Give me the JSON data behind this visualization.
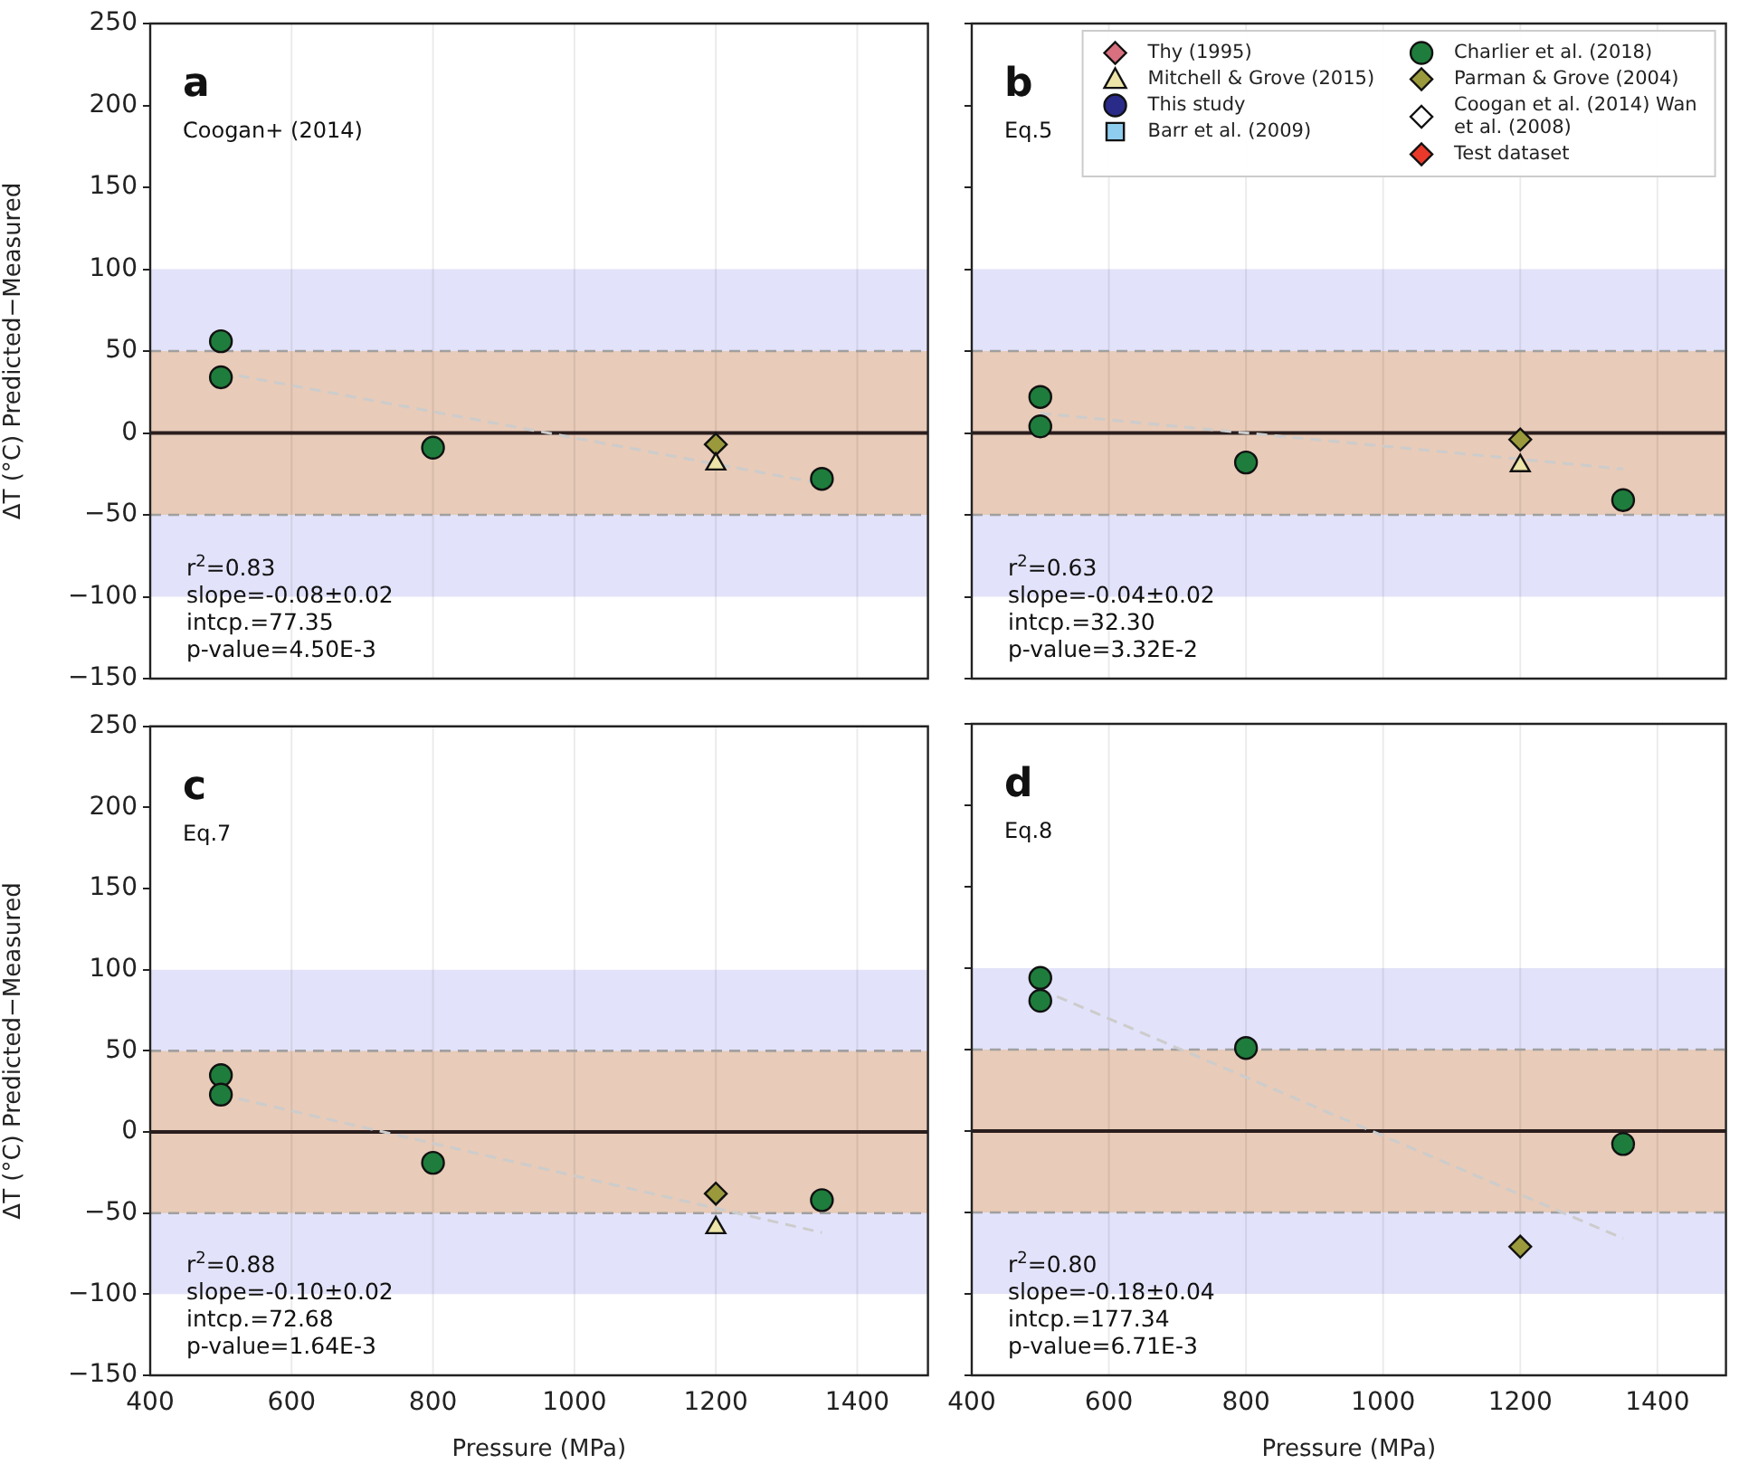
{
  "chart_data": [
    {
      "type": "scatter",
      "title": "a",
      "subtitle": "Coogan+ (2014)",
      "ylabel": "ΔT (°C) Predicted−Measured",
      "annotations": [
        "r$^{2}$=0.83",
        "slope=-0.08±0.02",
        "intcp.=77.35",
        "p-value=4.50E-3"
      ],
      "xlim": [
        400,
        1500
      ],
      "xticks": [
        400,
        600,
        800,
        1000,
        1200,
        1400
      ],
      "ylim": [
        -150,
        250
      ],
      "yticks": [
        -150,
        -100,
        -50,
        0,
        50,
        100,
        150,
        200,
        250
      ],
      "tick_labels": "y",
      "grid": "x",
      "bands": [
        {
          "axis": "y",
          "from": -100,
          "to": 100,
          "color": "#e2e2fa"
        },
        {
          "axis": "y",
          "from": -50,
          "to": 50,
          "color": "#e8cbb8"
        }
      ],
      "ref_lines": [
        {
          "axis": "y",
          "value": 50,
          "color": "#a0a0a0",
          "line_style": "dashed"
        },
        {
          "axis": "y",
          "value": -50,
          "color": "#a0a0a0",
          "line_style": "dashed"
        },
        {
          "axis": "y",
          "value": 0,
          "color": "#2a1e1e",
          "line_style": "solid"
        }
      ],
      "series": [
        {
          "type": "line",
          "color": "#cccccc",
          "line_style": "dashed",
          "marker": "none",
          "x": [
            500,
            1350
          ],
          "values": [
            37,
            -31
          ]
        },
        {
          "color": "#1e7d3c",
          "marker": "circle",
          "x": [
            500,
            500,
            800,
            1350
          ],
          "values": [
            56,
            34,
            -9,
            -28
          ]
        },
        {
          "color": "#ece4a8",
          "marker": "triangle",
          "x": [
            1200
          ],
          "values": [
            -19
          ]
        },
        {
          "color": "#9a9a3c",
          "marker": "diamond",
          "x": [
            1200
          ],
          "values": [
            -7
          ]
        }
      ]
    },
    {
      "type": "scatter",
      "title": "b",
      "subtitle": "Eq.5",
      "annotations": [
        "r$^{2}$=0.63",
        "slope=-0.04±0.02",
        "intcp.=32.30",
        "p-value=3.32E-2"
      ],
      "xlim": [
        400,
        1500
      ],
      "xticks": [
        400,
        600,
        800,
        1000,
        1200,
        1400
      ],
      "ylim": [
        -150,
        250
      ],
      "yticks": [
        -150,
        -100,
        -50,
        0,
        50,
        100,
        150,
        200,
        250
      ],
      "tick_labels": false,
      "grid": "x",
      "legend": "top right",
      "bands": [
        {
          "axis": "y",
          "from": -100,
          "to": 100,
          "color": "#e2e2fa"
        },
        {
          "axis": "y",
          "from": -50,
          "to": 50,
          "color": "#e8cbb8"
        }
      ],
      "ref_lines": [
        {
          "axis": "y",
          "value": 50,
          "color": "#a0a0a0",
          "line_style": "dashed"
        },
        {
          "axis": "y",
          "value": -50,
          "color": "#a0a0a0",
          "line_style": "dashed"
        },
        {
          "axis": "y",
          "value": 0,
          "color": "#2a1e1e",
          "line_style": "solid"
        }
      ],
      "series": [
        {
          "type": "line",
          "color": "#cccccc",
          "line_style": "dashed",
          "marker": "none",
          "x": [
            500,
            1350
          ],
          "values": [
            12,
            -22
          ]
        },
        {
          "name": "Thy (1995)",
          "color": "#d9707f",
          "marker": "diamond"
        },
        {
          "name": "Mitchell & Grove (2015)",
          "color": "#ece4a8",
          "marker": "triangle",
          "x": [
            1200
          ],
          "values": [
            -20
          ]
        },
        {
          "name": "This study",
          "color": "#2a2a88",
          "marker": "circle"
        },
        {
          "name": "Barr et al. (2009)",
          "color": "#8ecdee",
          "marker": "square"
        },
        {
          "name": "Charlier et al. (2018)",
          "color": "#1e7d3c",
          "marker": "circle",
          "x": [
            500,
            500,
            800,
            1350
          ],
          "values": [
            22,
            4,
            -18,
            -41
          ]
        },
        {
          "name": "Parman & Grove (2004)",
          "color": "#9a9a3c",
          "marker": "diamond",
          "x": [
            1200
          ],
          "values": [
            -4
          ]
        },
        {
          "name": "Coogan et al. (2014) Wan et al. (2008)",
          "color": "#ffffff",
          "marker": "diamond"
        },
        {
          "name": "Test dataset",
          "color": "#e8392b",
          "marker": "diamond"
        }
      ]
    },
    {
      "type": "scatter",
      "title": "c",
      "subtitle": "Eq.7",
      "xlabel": "Pressure (MPa)",
      "ylabel": "ΔT (°C) Predicted−Measured",
      "annotations": [
        "r$^{2}$=0.88",
        "slope=-0.10±0.02",
        "intcp.=72.68",
        "p-value=1.64E-3"
      ],
      "xlim": [
        400,
        1500
      ],
      "xticks": [
        400,
        600,
        800,
        1000,
        1200,
        1400
      ],
      "ylim": [
        -150,
        250
      ],
      "yticks": [
        -150,
        -100,
        -50,
        0,
        50,
        100,
        150,
        200,
        250
      ],
      "grid": "x",
      "bands": [
        {
          "axis": "y",
          "from": -100,
          "to": 100,
          "color": "#e2e2fa"
        },
        {
          "axis": "y",
          "from": -50,
          "to": 50,
          "color": "#e8cbb8"
        }
      ],
      "ref_lines": [
        {
          "axis": "y",
          "value": 50,
          "color": "#a0a0a0",
          "line_style": "dashed"
        },
        {
          "axis": "y",
          "value": -50,
          "color": "#a0a0a0",
          "line_style": "dashed"
        },
        {
          "axis": "y",
          "value": 0,
          "color": "#2a1e1e",
          "line_style": "solid"
        }
      ],
      "series": [
        {
          "type": "line",
          "color": "#cccccc",
          "line_style": "dashed",
          "marker": "none",
          "x": [
            500,
            1350
          ],
          "values": [
            23,
            -62
          ]
        },
        {
          "color": "#1e7d3c",
          "marker": "circle",
          "x": [
            500,
            500,
            800,
            1350
          ],
          "values": [
            35,
            23,
            -19,
            -42
          ]
        },
        {
          "color": "#ece4a8",
          "marker": "triangle",
          "x": [
            1200
          ],
          "values": [
            -59
          ]
        },
        {
          "color": "#9a9a3c",
          "marker": "diamond",
          "x": [
            1200
          ],
          "values": [
            -38
          ]
        }
      ]
    },
    {
      "type": "scatter",
      "title": "d",
      "subtitle": "Eq.8",
      "xlabel": "Pressure (MPa)",
      "annotations": [
        "r$^{2}$=0.80",
        "slope=-0.18±0.04",
        "intcp.=177.34",
        "p-value=6.71E-3"
      ],
      "xlim": [
        400,
        1500
      ],
      "xticks": [
        400,
        600,
        800,
        1000,
        1200,
        1400
      ],
      "ylim": [
        -150,
        250
      ],
      "yticks": [
        -150,
        -100,
        -50,
        0,
        50,
        100,
        150,
        200,
        250
      ],
      "tick_labels": "x",
      "grid": "x",
      "bands": [
        {
          "axis": "y",
          "from": -100,
          "to": 100,
          "color": "#e2e2fa"
        },
        {
          "axis": "y",
          "from": -50,
          "to": 50,
          "color": "#e8cbb8"
        }
      ],
      "ref_lines": [
        {
          "axis": "y",
          "value": 50,
          "color": "#a0a0a0",
          "line_style": "dashed"
        },
        {
          "axis": "y",
          "value": -50,
          "color": "#a0a0a0",
          "line_style": "dashed"
        },
        {
          "axis": "y",
          "value": 0,
          "color": "#2a1e1e",
          "line_style": "solid"
        }
      ],
      "series": [
        {
          "type": "line",
          "color": "#cccccc",
          "line_style": "dashed",
          "marker": "none",
          "x": [
            500,
            1350
          ],
          "values": [
            87,
            -66
          ]
        },
        {
          "color": "#1e7d3c",
          "marker": "circle",
          "x": [
            500,
            500,
            800,
            1350
          ],
          "values": [
            94,
            80,
            51,
            -8
          ]
        },
        {
          "color": "#9a9a3c",
          "marker": "diamond",
          "x": [
            1200
          ],
          "values": [
            -71
          ]
        }
      ]
    }
  ]
}
